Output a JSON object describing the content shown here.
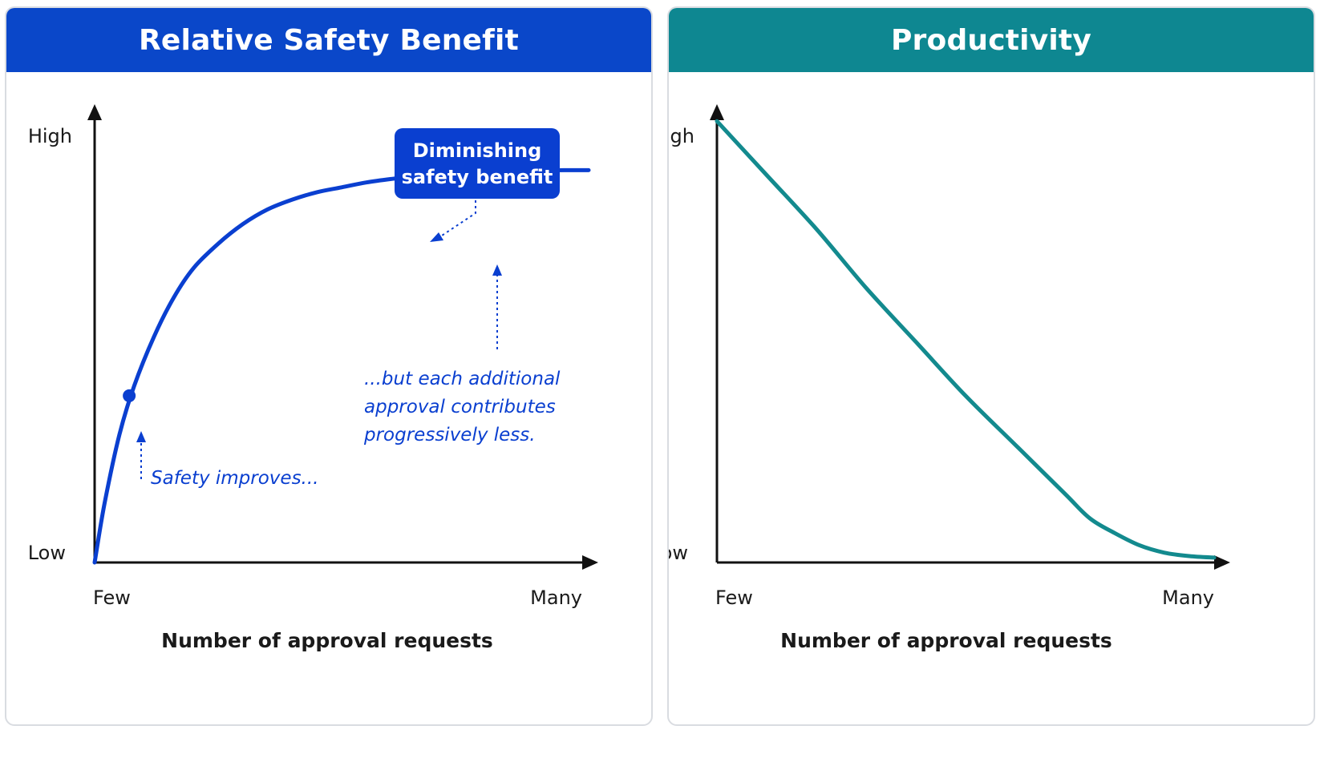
{
  "chart_data": [
    {
      "type": "line",
      "title": "Relative Safety Benefit",
      "header_color": "#0a47c9",
      "line_color": "#0a3fd0",
      "xlabel": "Number of approval requests",
      "x_ticks": [
        "Few",
        "Many"
      ],
      "y_ticks": [
        "Low",
        "High"
      ],
      "xlim": [
        0,
        1
      ],
      "ylim": [
        0,
        1
      ],
      "series": [
        {
          "x": [
            0,
            0.02,
            0.05,
            0.08,
            0.12,
            0.16,
            0.2,
            0.25,
            0.3,
            0.35,
            0.4,
            0.45,
            0.5,
            0.55,
            0.6,
            0.65,
            0.7,
            0.75,
            0.8,
            0.85,
            0.9,
            0.95,
            1.0
          ],
          "y": [
            0,
            0.12,
            0.26,
            0.36,
            0.46,
            0.54,
            0.6,
            0.65,
            0.69,
            0.72,
            0.74,
            0.755,
            0.765,
            0.775,
            0.782,
            0.788,
            0.792,
            0.795,
            0.797,
            0.798,
            0.799,
            0.8,
            0.8
          ]
        }
      ],
      "highlight_point": {
        "x": 0.07,
        "y": 0.34
      },
      "annotations": {
        "callout_lines": [
          "Diminishing",
          "safety benefit"
        ],
        "improves": "Safety improves...",
        "but_lines": [
          "...but each additional",
          "approval contributes",
          "progressively less."
        ]
      }
    },
    {
      "type": "line",
      "title": "Productivity",
      "header_color": "#0e8791",
      "line_color": "#138a8e",
      "xlabel": "Number of approval requests",
      "x_ticks": [
        "Few",
        "Many"
      ],
      "y_ticks": [
        "Low",
        "High"
      ],
      "xlim": [
        0,
        1
      ],
      "ylim": [
        0,
        1
      ],
      "series": [
        {
          "x": [
            0,
            0.1,
            0.2,
            0.3,
            0.4,
            0.5,
            0.6,
            0.7,
            0.75,
            0.8,
            0.85,
            0.9,
            0.95,
            1.0
          ],
          "y": [
            0.9,
            0.79,
            0.68,
            0.56,
            0.45,
            0.34,
            0.24,
            0.14,
            0.09,
            0.06,
            0.035,
            0.02,
            0.013,
            0.01
          ]
        }
      ]
    }
  ]
}
